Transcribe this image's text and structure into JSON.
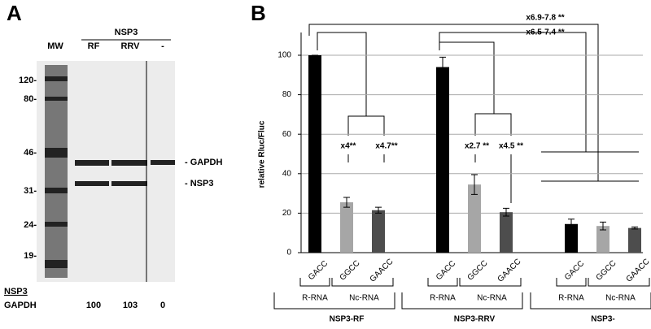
{
  "panel_a": {
    "label": "A",
    "mw": "MW",
    "header": "NSP3",
    "lanes": [
      "RF",
      "RRV",
      "-"
    ],
    "markers": [
      "120-",
      "80-",
      "46-",
      "31-",
      "24-",
      "19-"
    ],
    "bands": [
      "- GAPDH",
      "- NSP3"
    ],
    "ratio": {
      "numerator": "NSP3",
      "denominator": "GAPDH",
      "values": [
        "100",
        "103",
        "0"
      ]
    }
  },
  "chart_data": {
    "type": "bar",
    "panel_label": "B",
    "y_label": "relative Rluc/Fluc",
    "categories": [
      "NSP3-RF",
      "NSP3-RRV",
      "NSP3-"
    ],
    "subgroup_labels": [
      "R-RNA",
      "Nc-RNA"
    ],
    "series": [
      {
        "name": "GACC",
        "color": "#000000",
        "values": [
          100,
          94,
          14.5
        ],
        "errors": [
          0,
          5,
          2.5
        ]
      },
      {
        "name": "GGCC",
        "color": "#a6a6a6",
        "values": [
          25.5,
          34.5,
          13.5
        ],
        "errors": [
          2.5,
          5,
          2
        ]
      },
      {
        "name": "GAACC",
        "color": "#4d4d4d",
        "values": [
          21.5,
          20.5,
          12.5
        ],
        "errors": [
          1.5,
          2,
          0.5
        ]
      }
    ],
    "ylim": [
      0,
      100
    ],
    "yticks": [
      0,
      20,
      40,
      60,
      80,
      100
    ],
    "grid": true,
    "annotations": [
      "x4**",
      "x4.7**",
      "x2.7 **",
      "x4.5 **",
      "x6.9-7.8 **",
      "x6.5-7.4 **"
    ]
  }
}
